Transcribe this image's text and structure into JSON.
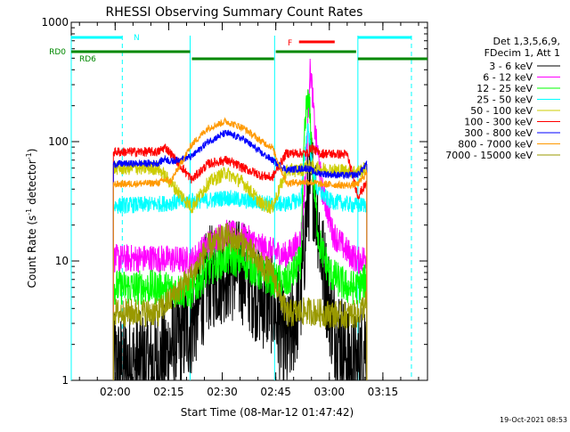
{
  "chart_data": {
    "type": "line",
    "title": "RHESSI Observing Summary Count Rates",
    "xlabel": "Start Time (08-Mar-12 01:47:42)",
    "ylabel_parts": [
      "Count Rate (s",
      "-1",
      " detector",
      "-1",
      ")"
    ],
    "ylog": true,
    "ylim": [
      1,
      1000
    ],
    "xlim_minutes": [
      "01:47:42",
      "03:27:30"
    ],
    "x_ticks": [
      "02:00",
      "02:15",
      "02:30",
      "02:45",
      "03:00",
      "03:15"
    ],
    "y_ticks": [
      "1",
      "10",
      "100",
      "1000"
    ],
    "timestamp": "19-Oct-2021 08:53",
    "legend_header": [
      "Det 1,3,5,6,9,",
      "FDecim 1, Att 1"
    ],
    "series": [
      {
        "name": "3 - 6 keV",
        "color": "#000000",
        "noise": 0.45,
        "points": [
          [
            "01:59:30",
            1.3
          ],
          [
            "02:12:00",
            1.4
          ],
          [
            "02:21:30",
            3.0
          ],
          [
            "02:26:00",
            7.0
          ],
          [
            "02:31:00",
            8.5
          ],
          [
            "02:36:00",
            8.0
          ],
          [
            "02:41:00",
            5.0
          ],
          [
            "02:44:00",
            4.5
          ],
          [
            "02:48:00",
            1.8
          ],
          [
            "02:52:00",
            5
          ],
          [
            "02:54:00",
            35
          ],
          [
            "02:55:00",
            50
          ],
          [
            "02:56:30",
            28
          ],
          [
            "02:58:00",
            10
          ],
          [
            "03:01:00",
            3
          ],
          [
            "03:06:00",
            1.4
          ],
          [
            "03:08:00",
            1.3
          ],
          [
            "03:10:30",
            2.5
          ]
        ]
      },
      {
        "name": "6 - 12 keV",
        "color": "#ff00ff",
        "noise": 0.12,
        "points": [
          [
            "01:59:30",
            10.5
          ],
          [
            "02:12:00",
            10.5
          ],
          [
            "02:21:30",
            10
          ],
          [
            "02:26:00",
            14
          ],
          [
            "02:31:00",
            17
          ],
          [
            "02:36:00",
            16
          ],
          [
            "02:41:00",
            13
          ],
          [
            "02:44:00",
            12
          ],
          [
            "02:48:00",
            11
          ],
          [
            "02:52:00",
            15
          ],
          [
            "02:53:30",
            60
          ],
          [
            "02:54:30",
            400
          ],
          [
            "02:55:00",
            330
          ],
          [
            "02:56:00",
            120
          ],
          [
            "02:58:00",
            40
          ],
          [
            "03:01:00",
            17
          ],
          [
            "03:05:00",
            12
          ],
          [
            "03:08:00",
            10
          ],
          [
            "03:10:30",
            11
          ]
        ]
      },
      {
        "name": "12 - 25 keV",
        "color": "#00ff00",
        "noise": 0.15,
        "points": [
          [
            "01:59:30",
            6
          ],
          [
            "02:12:00",
            6
          ],
          [
            "02:21:30",
            5.5
          ],
          [
            "02:26:00",
            8.5
          ],
          [
            "02:31:00",
            10.5
          ],
          [
            "02:36:00",
            10
          ],
          [
            "02:41:00",
            7.5
          ],
          [
            "02:44:00",
            7
          ],
          [
            "02:48:00",
            6.5
          ],
          [
            "02:52:00",
            10
          ],
          [
            "02:53:00",
            100
          ],
          [
            "02:53:45",
            230
          ],
          [
            "02:54:30",
            180
          ],
          [
            "02:55:30",
            50
          ],
          [
            "02:57:00",
            15
          ],
          [
            "03:00:00",
            8
          ],
          [
            "03:05:00",
            6
          ],
          [
            "03:08:00",
            6
          ],
          [
            "03:10:30",
            7
          ]
        ]
      },
      {
        "name": "25 - 50 keV",
        "color": "#00ffff",
        "noise": 0.07,
        "points": [
          [
            "01:59:30",
            29
          ],
          [
            "02:12:00",
            30
          ],
          [
            "02:21:30",
            32
          ],
          [
            "02:26:00",
            32
          ],
          [
            "02:31:00",
            34
          ],
          [
            "02:36:00",
            32
          ],
          [
            "02:41:00",
            31
          ],
          [
            "02:44:00",
            30
          ],
          [
            "02:48:00",
            30
          ],
          [
            "02:52:00",
            33
          ],
          [
            "02:53:30",
            100
          ],
          [
            "02:54:00",
            140
          ],
          [
            "02:55:00",
            70
          ],
          [
            "02:56:30",
            40
          ],
          [
            "03:00:00",
            32
          ],
          [
            "03:05:00",
            30
          ],
          [
            "03:08:00",
            29
          ],
          [
            "03:10:30",
            30
          ]
        ]
      },
      {
        "name": "50 - 100 keV",
        "color": "#cccc00",
        "noise": 0.06,
        "points": [
          [
            "01:59:30",
            60
          ],
          [
            "02:12:00",
            60
          ],
          [
            "02:21:30",
            28
          ],
          [
            "02:26:00",
            45
          ],
          [
            "02:31:00",
            55
          ],
          [
            "02:36:00",
            45
          ],
          [
            "02:41:00",
            30
          ],
          [
            "02:44:00",
            28
          ],
          [
            "02:48:00",
            57
          ],
          [
            "02:52:00",
            58
          ],
          [
            "02:54:00",
            62
          ],
          [
            "02:56:00",
            60
          ],
          [
            "03:00:00",
            58
          ],
          [
            "03:05:00",
            57
          ],
          [
            "03:08:00",
            56
          ],
          [
            "03:10:30",
            60
          ]
        ]
      },
      {
        "name": "100 - 300 keV",
        "color": "#ff0000",
        "noise": 0.04,
        "points": [
          [
            "01:59:30",
            82
          ],
          [
            "02:12:00",
            82
          ],
          [
            "02:14:00",
            90
          ],
          [
            "02:15:30",
            80
          ],
          [
            "02:21:30",
            48
          ],
          [
            "02:26:00",
            65
          ],
          [
            "02:31:00",
            70
          ],
          [
            "02:36:00",
            60
          ],
          [
            "02:41:00",
            52
          ],
          [
            "02:44:00",
            50
          ],
          [
            "02:48:00",
            80
          ],
          [
            "02:54:00",
            80
          ],
          [
            "02:55:00",
            90
          ],
          [
            "02:57:00",
            80
          ],
          [
            "03:05:00",
            78
          ],
          [
            "03:08:00",
            35
          ],
          [
            "03:10:30",
            45
          ]
        ]
      },
      {
        "name": "300 - 800 keV",
        "color": "#0000ff",
        "noise": 0.03,
        "points": [
          [
            "01:59:30",
            65
          ],
          [
            "02:12:00",
            66
          ],
          [
            "02:14:00",
            72
          ],
          [
            "02:15:30",
            68
          ],
          [
            "02:21:30",
            75
          ],
          [
            "02:26:00",
            100
          ],
          [
            "02:31:00",
            118
          ],
          [
            "02:36:00",
            105
          ],
          [
            "02:41:00",
            80
          ],
          [
            "02:44:00",
            70
          ],
          [
            "02:48:00",
            58
          ],
          [
            "02:54:00",
            60
          ],
          [
            "02:56:00",
            55
          ],
          [
            "03:00:00",
            53
          ],
          [
            "03:05:00",
            52
          ],
          [
            "03:08:00",
            53
          ],
          [
            "03:10:30",
            65
          ]
        ]
      },
      {
        "name": "800 - 7000 keV",
        "color": "#ff9900",
        "noise": 0.03,
        "points": [
          [
            "01:59:30",
            44
          ],
          [
            "02:12:00",
            45
          ],
          [
            "02:14:00",
            48
          ],
          [
            "02:15:30",
            46
          ],
          [
            "02:21:30",
            95
          ],
          [
            "02:26:00",
            130
          ],
          [
            "02:31:00",
            148
          ],
          [
            "02:36:00",
            130
          ],
          [
            "02:41:00",
            100
          ],
          [
            "02:44:00",
            90
          ],
          [
            "02:48:00",
            45
          ],
          [
            "02:54:00",
            46
          ],
          [
            "02:58:00",
            44
          ],
          [
            "03:05:00",
            43
          ],
          [
            "03:08:00",
            44
          ],
          [
            "03:10:30",
            55
          ]
        ]
      },
      {
        "name": "7000 - 15000 keV",
        "color": "#999900",
        "noise": 0.12,
        "points": [
          [
            "01:59:30",
            3.7
          ],
          [
            "02:12:00",
            3.7
          ],
          [
            "02:21:30",
            7.5
          ],
          [
            "02:26:00",
            13
          ],
          [
            "02:31:00",
            16
          ],
          [
            "02:36:00",
            14
          ],
          [
            "02:41:00",
            9
          ],
          [
            "02:44:00",
            8
          ],
          [
            "02:48:00",
            3.6
          ],
          [
            "02:54:00",
            3.8
          ],
          [
            "03:00:00",
            3.6
          ],
          [
            "03:05:00",
            3.5
          ],
          [
            "03:08:00",
            3.6
          ],
          [
            "03:10:30",
            4.5
          ]
        ]
      }
    ],
    "segments": [
      {
        "label": "N",
        "color": "#00ffff",
        "ranges": [
          [
            "01:47:42",
            "02:02:00"
          ],
          [
            "03:08:00",
            "03:23:00"
          ]
        ]
      },
      {
        "label": "RD0",
        "color": "#008800",
        "ranges": [
          [
            "01:47:42",
            "02:21:00"
          ],
          [
            "02:21:30",
            "02:44:30"
          ],
          [
            "02:45:00",
            "03:07:30"
          ],
          [
            "03:08:00",
            "03:27:30"
          ]
        ]
      },
      {
        "label": "RD6",
        "color": "#008800",
        "ranges": []
      },
      {
        "label": "F",
        "color": "#ff0000",
        "ranges": [
          [
            "02:51:30",
            "03:01:30"
          ]
        ]
      }
    ],
    "vlines_cyan_solid": [
      "01:47:42",
      "02:21:00",
      "02:44:40",
      "03:08:00"
    ],
    "vlines_cyan_dashed": [
      "02:02:00",
      "03:23:00"
    ]
  }
}
